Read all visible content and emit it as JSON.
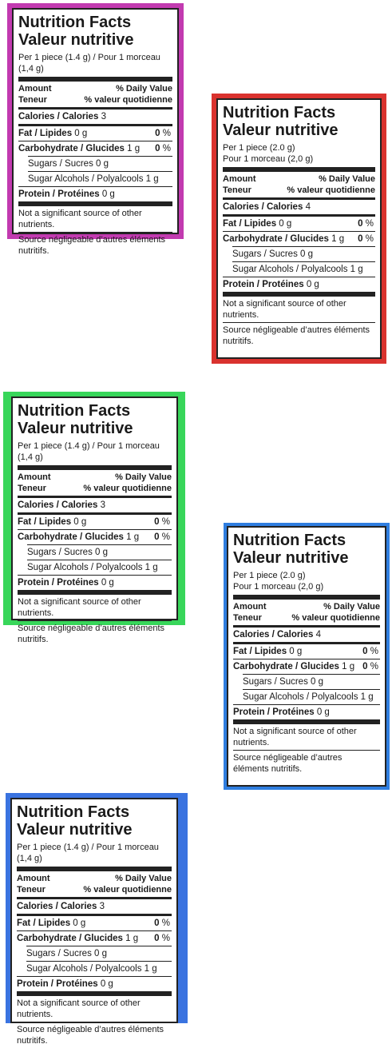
{
  "panels": [
    {
      "title_en": "Nutrition Facts",
      "title_fr": "Valeur nutritive",
      "serving_line1": "Per 1 piece (1.4 g) / Pour 1 morceau (1,4 g)",
      "serving_line2": "",
      "amount": "Amount",
      "teneur": "Teneur",
      "dv_en": "% Daily Value",
      "dv_fr": "% valeur quotidienne",
      "calories_label": "Calories / Calories",
      "calories_value": "3",
      "fat_label": "Fat / Lipides",
      "fat_value": "0 g",
      "fat_pct": "0",
      "carb_label": "Carbohydrate / Glucides",
      "carb_value": "1 g",
      "carb_pct": "0",
      "sugars_label": "Sugars / Sucres",
      "sugars_value": "0 g",
      "polyol_label": "Sugar Alcohols / Polyalcools",
      "polyol_value": "1 g",
      "protein_label": "Protein / Protéines",
      "protein_value": "0 g",
      "footnote_en": "Not a significant source of other nutrients.",
      "footnote_fr": "Source négligeable d’autres éléments nutritifs.",
      "pct_unit": "%"
    },
    {
      "title_en": "Nutrition Facts",
      "title_fr": "Valeur nutritive",
      "serving_line1": "Per 1 piece (2.0 g)",
      "serving_line2": "Pour 1 morceau (2,0 g)",
      "amount": "Amount",
      "teneur": "Teneur",
      "dv_en": "% Daily Value",
      "dv_fr": "% valeur quotidienne",
      "calories_label": "Calories / Calories",
      "calories_value": "4",
      "fat_label": "Fat / Lipides",
      "fat_value": "0 g",
      "fat_pct": "0",
      "carb_label": "Carbohydrate / Glucides",
      "carb_value": "1 g",
      "carb_pct": "0",
      "sugars_label": "Sugars / Sucres",
      "sugars_value": "0 g",
      "polyol_label": "Sugar Alcohols / Polyalcools",
      "polyol_value": "1 g",
      "protein_label": "Protein / Protéines",
      "protein_value": "0 g",
      "footnote_en": "Not a significant source of other nutrients.",
      "footnote_fr": "Source négligeable d’autres éléments nutritifs.",
      "pct_unit": "%"
    },
    {
      "title_en": "Nutrition Facts",
      "title_fr": "Valeur nutritive",
      "serving_line1": "Per 1 piece (1.4 g) / Pour 1 morceau (1,4 g)",
      "serving_line2": "",
      "amount": "Amount",
      "teneur": "Teneur",
      "dv_en": "% Daily Value",
      "dv_fr": "% valeur quotidienne",
      "calories_label": "Calories / Calories",
      "calories_value": "3",
      "fat_label": "Fat / Lipides",
      "fat_value": "0 g",
      "fat_pct": "0",
      "carb_label": "Carbohydrate / Glucides",
      "carb_value": "1 g",
      "carb_pct": "0",
      "sugars_label": "Sugars / Sucres",
      "sugars_value": "0 g",
      "polyol_label": "Sugar Alcohols / Polyalcools",
      "polyol_value": "1 g",
      "protein_label": "Protein / Protéines",
      "protein_value": "0 g",
      "footnote_en": "Not a significant source of other nutrients.",
      "footnote_fr": "Source négligeable d’autres éléments nutritifs.",
      "pct_unit": "%"
    },
    {
      "title_en": "Nutrition Facts",
      "title_fr": "Valeur nutritive",
      "serving_line1": "Per 1 piece (2.0 g)",
      "serving_line2": "Pour 1 morceau (2,0 g)",
      "amount": "Amount",
      "teneur": "Teneur",
      "dv_en": "% Daily Value",
      "dv_fr": "% valeur quotidienne",
      "calories_label": "Calories / Calories",
      "calories_value": "4",
      "fat_label": "Fat / Lipides",
      "fat_value": "0 g",
      "fat_pct": "0",
      "carb_label": "Carbohydrate / Glucides",
      "carb_value": "1 g",
      "carb_pct": "0",
      "sugars_label": "Sugars / Sucres",
      "sugars_value": "0 g",
      "polyol_label": "Sugar Alcohols / Polyalcools",
      "polyol_value": "1 g",
      "protein_label": "Protein / Protéines",
      "protein_value": "0 g",
      "footnote_en": "Not a significant source of other nutrients.",
      "footnote_fr": "Source négligeable d’autres éléments nutritifs.",
      "pct_unit": "%"
    },
    {
      "title_en": "Nutrition Facts",
      "title_fr": "Valeur nutritive",
      "serving_line1": "Per 1 piece (1.4 g) / Pour 1 morceau (1,4 g)",
      "serving_line2": "",
      "amount": "Amount",
      "teneur": "Teneur",
      "dv_en": "% Daily Value",
      "dv_fr": "% valeur quotidienne",
      "calories_label": "Calories / Calories",
      "calories_value": "3",
      "fat_label": "Fat / Lipides",
      "fat_value": "0 g",
      "fat_pct": "0",
      "carb_label": "Carbohydrate / Glucides",
      "carb_value": "1 g",
      "carb_pct": "0",
      "sugars_label": "Sugars / Sucres",
      "sugars_value": "0 g",
      "polyol_label": "Sugar Alcohols / Polyalcools",
      "polyol_value": "1 g",
      "protein_label": "Protein / Protéines",
      "protein_value": "0 g",
      "footnote_en": "Not a significant source of other nutrients.",
      "footnote_fr": "Source négligeable d’autres éléments nutritifs.",
      "pct_unit": "%"
    }
  ],
  "colors": {
    "magenta": "#c23ab0",
    "red": "#d9322e",
    "green": "#38d65a",
    "blue": "#2f7ee0",
    "blue2": "#3a73e0"
  }
}
